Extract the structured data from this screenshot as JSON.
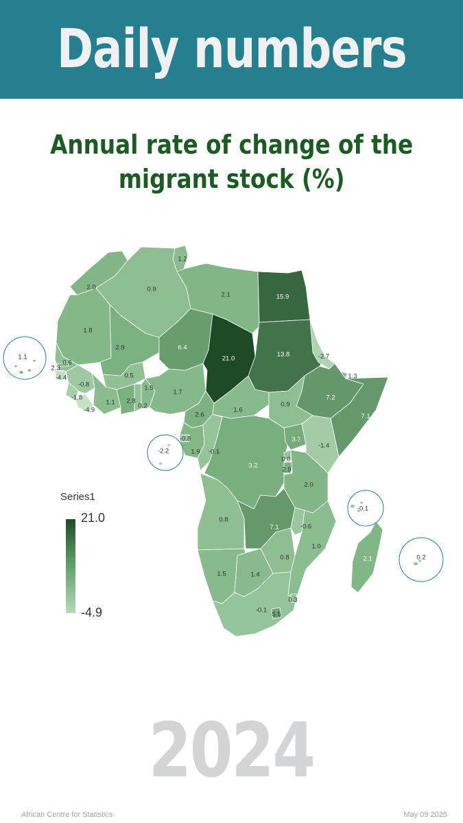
{
  "banner": {
    "title": "Daily numbers"
  },
  "map_title": {
    "line1": "Annual rate of change of the",
    "line2": "migrant stock (%)"
  },
  "legend": {
    "series": "Series1",
    "max": "21.0",
    "min": "-4.9"
  },
  "year": "2024",
  "footer": {
    "source": "African Centre for Statistics",
    "date": "May 09 2025"
  },
  "colors": {
    "banner": "#267f8f",
    "title": "#1d5b25",
    "dark_green": "#1f4a28",
    "light_green": "#b7d9b9"
  },
  "map_values": [
    {
      "name": "Tunisia",
      "value": 1.2
    },
    {
      "name": "Morocco",
      "value": 2.0
    },
    {
      "name": "Algeria",
      "value": 0.9
    },
    {
      "name": "Libya",
      "value": 2.1
    },
    {
      "name": "Egypt",
      "value": 15.9
    },
    {
      "name": "Western Sahara / Mauritania",
      "value": 1.8
    },
    {
      "name": "Mali",
      "value": 2.9
    },
    {
      "name": "Niger",
      "value": 6.4
    },
    {
      "name": "Chad",
      "value": 21.0
    },
    {
      "name": "Sudan",
      "value": 13.8
    },
    {
      "name": "Cabo Verde",
      "value": 1.1
    },
    {
      "name": "Senegal",
      "value": 0.6
    },
    {
      "name": "Gambia",
      "value": 2.3
    },
    {
      "name": "Guinea-Bissau",
      "value": -4.4
    },
    {
      "name": "Guinea",
      "value": -0.8
    },
    {
      "name": "Sierra Leone",
      "value": -1.8
    },
    {
      "name": "Liberia",
      "value": -4.9
    },
    {
      "name": "Burkina Faso",
      "value": 0.5
    },
    {
      "name": "Côte d'Ivoire",
      "value": 1.1
    },
    {
      "name": "Ghana",
      "value": 2.8
    },
    {
      "name": "Togo",
      "value": 0.2
    },
    {
      "name": "Benin",
      "value": 1.5
    },
    {
      "name": "Nigeria",
      "value": 1.7
    },
    {
      "name": "Eritrea",
      "value": -2.7
    },
    {
      "name": "Djibouti",
      "value": 1.3
    },
    {
      "name": "Ethiopia",
      "value": 7.2
    },
    {
      "name": "Somalia",
      "value": 7.1
    },
    {
      "name": "Cameroon",
      "value": 2.6
    },
    {
      "name": "Central African Republic",
      "value": 1.6
    },
    {
      "name": "South Sudan",
      "value": 0.9
    },
    {
      "name": "Equatorial Guinea",
      "value": -0.8
    },
    {
      "name": "Sao Tome and Principe",
      "value": -2.2
    },
    {
      "name": "Gabon",
      "value": 1.9
    },
    {
      "name": "Congo",
      "value": -0.1
    },
    {
      "name": "Uganda",
      "value": 3.7
    },
    {
      "name": "Kenya",
      "value": -1.4
    },
    {
      "name": "DR Congo",
      "value": 3.2
    },
    {
      "name": "Rwanda",
      "value": 0.0
    },
    {
      "name": "Burundi",
      "value": 2.9
    },
    {
      "name": "Tanzania",
      "value": 2.0
    },
    {
      "name": "Comoros",
      "value": -0.1
    },
    {
      "name": "Angola",
      "value": 0.8
    },
    {
      "name": "Zambia",
      "value": 7.1
    },
    {
      "name": "Malawi",
      "value": -0.6
    },
    {
      "name": "Mozambique",
      "value": 1.0
    },
    {
      "name": "Madagascar",
      "value": 2.1
    },
    {
      "name": "Mauritius",
      "value": 0.2
    },
    {
      "name": "Zimbabwe",
      "value": 0.8
    },
    {
      "name": "Namibia",
      "value": 1.5
    },
    {
      "name": "Botswana",
      "value": 1.4
    },
    {
      "name": "South Africa",
      "value": -0.1
    },
    {
      "name": "Eswatini",
      "value": 0.3
    },
    {
      "name": "Lesotho",
      "value": 5.5
    }
  ]
}
